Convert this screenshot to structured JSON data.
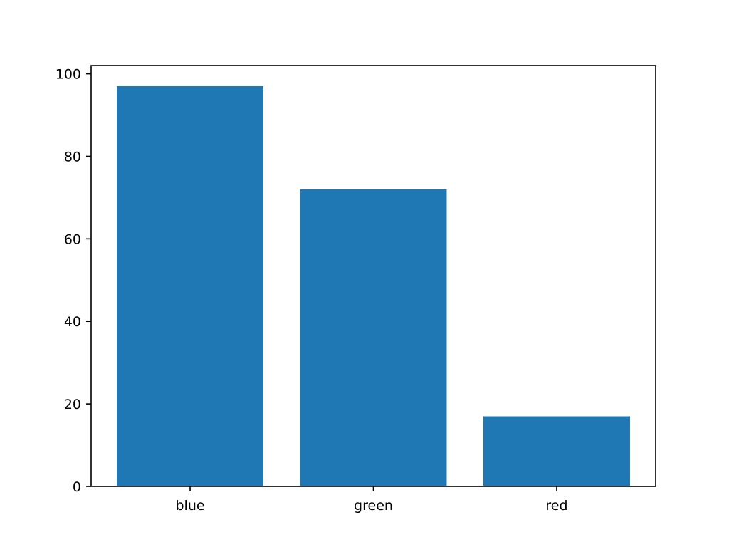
{
  "chart_data": {
    "type": "bar",
    "categories": [
      "blue",
      "green",
      "red"
    ],
    "values": [
      97,
      72,
      17
    ],
    "title": "",
    "xlabel": "",
    "ylabel": "",
    "ylim": [
      0,
      102
    ],
    "yticks": [
      0,
      20,
      40,
      60,
      80,
      100
    ],
    "bar_color": "#1f77b4",
    "grid": false,
    "legend": "none"
  }
}
